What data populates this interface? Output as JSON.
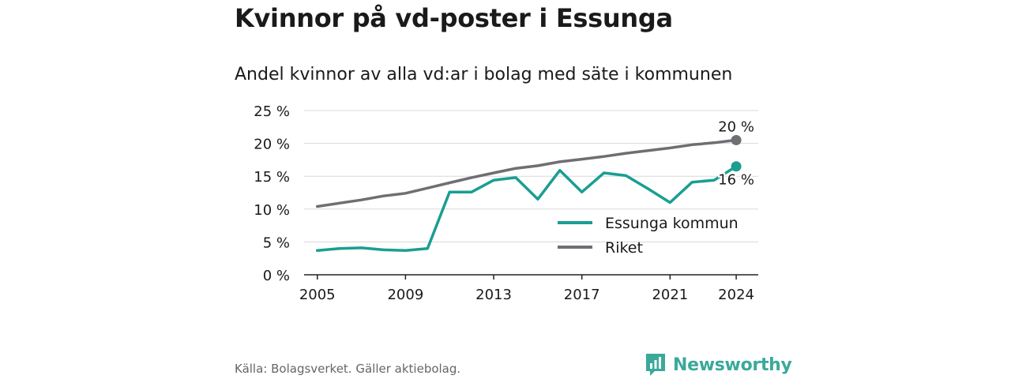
{
  "title": "Kvinnor på vd-poster i Essunga",
  "subtitle": "Andel kvinnor av alla vd:ar i bolag med säte i kommunen",
  "source": "Källa: Bolagsverket. Gäller aktiebolag.",
  "brand": "Newsworthy",
  "colors": {
    "essunga": "#1a9e92",
    "riket": "#6e6e73",
    "grid": "#d9d9d9",
    "axis": "#222222"
  },
  "chart_data": {
    "type": "line",
    "x": [
      2005,
      2006,
      2007,
      2008,
      2009,
      2010,
      2011,
      2012,
      2013,
      2014,
      2015,
      2016,
      2017,
      2018,
      2019,
      2020,
      2021,
      2022,
      2023,
      2024
    ],
    "xticks": [
      2005,
      2009,
      2013,
      2017,
      2021,
      2024
    ],
    "yticks": [
      0,
      5,
      10,
      15,
      20,
      25
    ],
    "ylim": [
      0,
      25
    ],
    "ytick_suffix": " %",
    "legend_position": "inside-bottom-right",
    "grid": true,
    "series": [
      {
        "name": "Essunga kommun",
        "color_key": "essunga",
        "end_label": "16 %",
        "values": [
          3.7,
          4.0,
          4.1,
          3.8,
          3.7,
          4.0,
          12.6,
          12.6,
          14.4,
          14.8,
          11.5,
          15.9,
          12.6,
          15.5,
          15.1,
          13.1,
          11.0,
          14.1,
          14.4,
          16.5
        ]
      },
      {
        "name": "Riket",
        "color_key": "riket",
        "end_label": "20 %",
        "values": [
          10.4,
          10.9,
          11.4,
          12.0,
          12.4,
          13.2,
          14.0,
          14.8,
          15.5,
          16.2,
          16.6,
          17.2,
          17.6,
          18.0,
          18.5,
          18.9,
          19.3,
          19.8,
          20.1,
          20.5
        ]
      }
    ]
  }
}
